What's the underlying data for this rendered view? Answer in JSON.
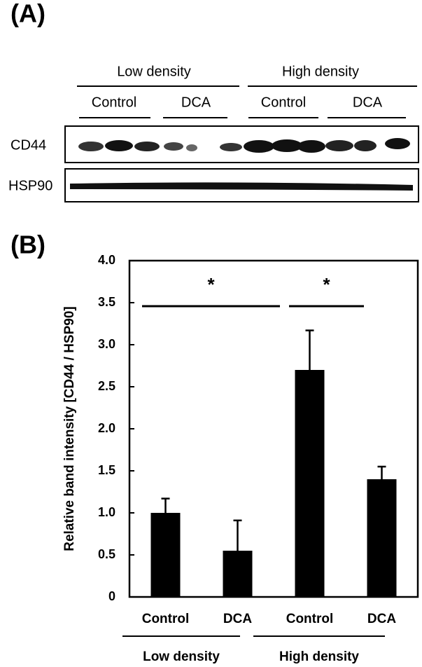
{
  "panel_a": {
    "label": "(A)",
    "groups": [
      "Low density",
      "High density"
    ],
    "conditions": [
      "Control",
      "DCA",
      "Control",
      "DCA"
    ],
    "rows": [
      "CD44",
      "HSP90"
    ]
  },
  "panel_b_label": "(B)",
  "chart_data": {
    "type": "bar",
    "y_label": "Relative band intensity [CD44 / HSP90]",
    "categories": [
      "Control",
      "DCA",
      "Control",
      "DCA"
    ],
    "groups": [
      "Low density",
      "High density"
    ],
    "values": [
      1.0,
      0.55,
      2.7,
      1.4
    ],
    "errors": [
      0.17,
      0.36,
      0.47,
      0.15
    ],
    "color": "#000000",
    "ylim": [
      0,
      4
    ],
    "yticks": [
      0,
      0.5,
      {
        "value": 1,
        "label": "1.0"
      },
      1.5,
      {
        "value": 2,
        "label": "2.0"
      },
      2.5,
      {
        "value": 3,
        "label": "3.0"
      },
      3.5,
      {
        "value": 4,
        "label": "4.0"
      }
    ],
    "annotations": [
      "*",
      "*"
    ]
  }
}
